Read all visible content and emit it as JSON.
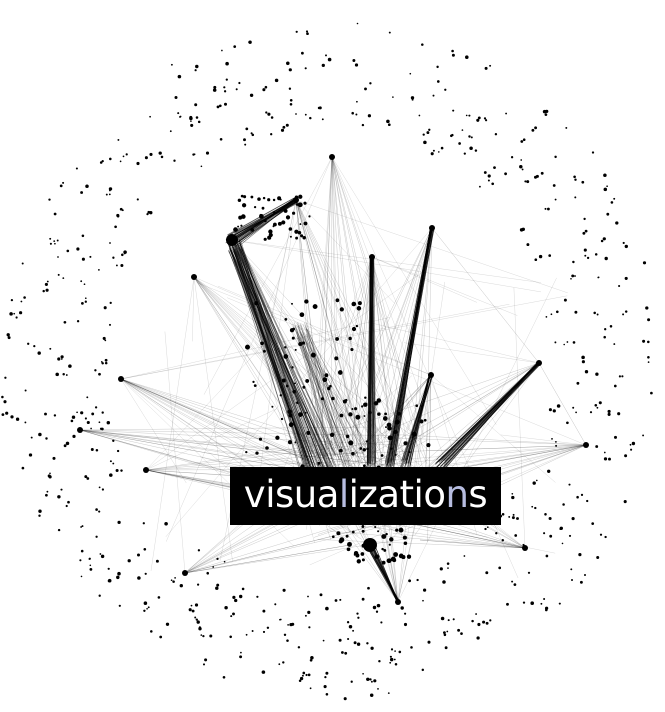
{
  "image": {
    "subject": "network-graph",
    "background": "#ffffff",
    "ink": "#000000"
  },
  "label": {
    "parts": [
      {
        "text": "visua",
        "highlight": false
      },
      {
        "text": "l",
        "highlight": true
      },
      {
        "text": "izatio",
        "highlight": false
      },
      {
        "text": "n",
        "highlight": true
      },
      {
        "text": "s",
        "highlight": false
      }
    ],
    "box_color": "#000000",
    "text_color": "#ffffff",
    "highlight_color": "#b7bde0"
  }
}
